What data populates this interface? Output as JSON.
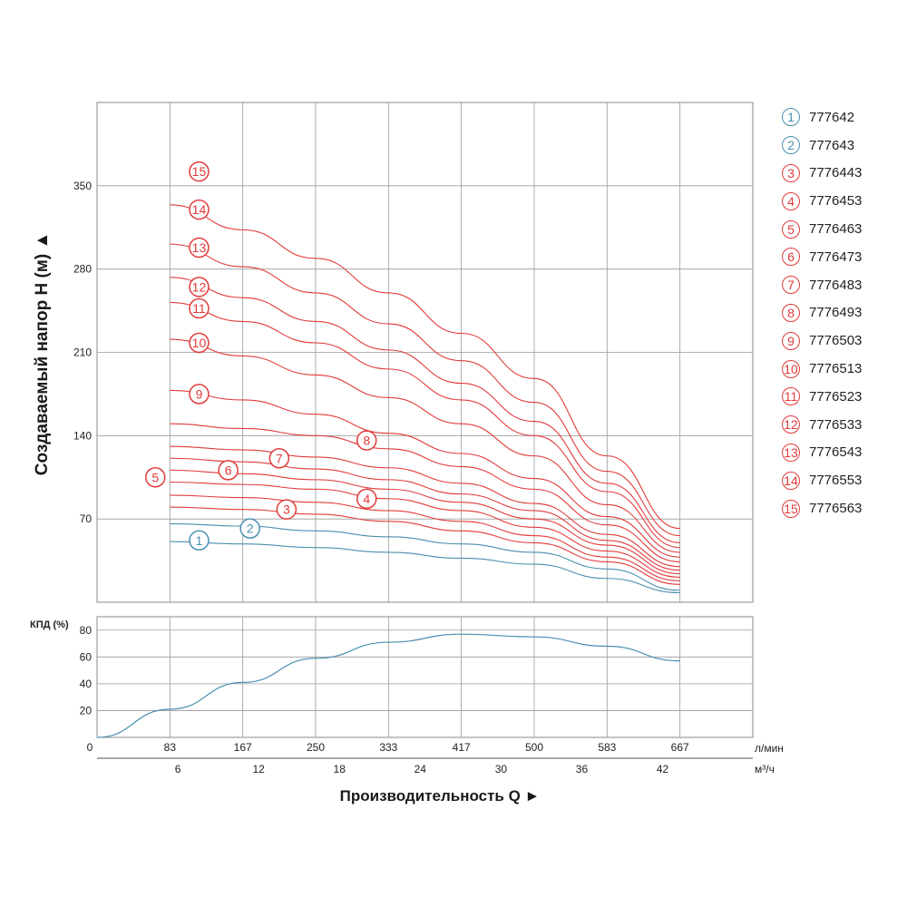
{
  "chart_data": [
    {
      "type": "line",
      "ylabel": "Создаваемый напор Н (м) ▲",
      "xlabel": "Производительность Q ►",
      "x_unit_top": "л/мин",
      "x_unit_bottom": "м³/ч",
      "xlim_m3h": [
        0,
        45
      ],
      "ylim": [
        0,
        420
      ],
      "y_ticks": [
        "70",
        "140",
        "210",
        "280",
        "350"
      ],
      "x_ticks_lmin": [
        "0",
        "83",
        "167",
        "250",
        "333",
        "417",
        "500",
        "583",
        "667"
      ],
      "x_ticks_m3h": [
        "6",
        "12",
        "18",
        "24",
        "30",
        "36",
        "42"
      ],
      "grid": true,
      "legend_position": "right",
      "colors": {
        "blue": "#4a8fb0",
        "red": "#e23a3a"
      },
      "x": [
        5,
        10,
        15,
        20,
        25,
        30,
        35,
        40
      ],
      "series": [
        {
          "label": "1",
          "name": "777642",
          "color": "blue",
          "values": [
            51,
            49,
            46,
            42,
            37,
            32,
            20,
            8
          ]
        },
        {
          "label": "2",
          "name": "777643",
          "color": "blue",
          "values": [
            66,
            64,
            60,
            55,
            49,
            42,
            28,
            10
          ]
        },
        {
          "label": "3",
          "name": "7776443",
          "color": "red",
          "values": [
            80,
            78,
            74,
            68,
            60,
            50,
            34,
            15
          ]
        },
        {
          "label": "4",
          "name": "7776453",
          "color": "red",
          "values": [
            90,
            88,
            84,
            77,
            68,
            56,
            38,
            18
          ]
        },
        {
          "label": "5",
          "name": "7776463",
          "color": "red",
          "values": [
            101,
            99,
            95,
            87,
            77,
            63,
            43,
            21
          ]
        },
        {
          "label": "6",
          "name": "7776473",
          "color": "red",
          "values": [
            111,
            108,
            103,
            95,
            84,
            70,
            48,
            24
          ]
        },
        {
          "label": "7",
          "name": "7776483",
          "color": "red",
          "values": [
            121,
            118,
            112,
            103,
            91,
            77,
            52,
            27
          ]
        },
        {
          "label": "8",
          "name": "7776493",
          "color": "red",
          "values": [
            131,
            128,
            122,
            113,
            100,
            83,
            57,
            30
          ]
        },
        {
          "label": "9",
          "name": "7776503",
          "color": "red",
          "values": [
            150,
            146,
            140,
            129,
            114,
            95,
            65,
            34
          ]
        },
        {
          "label": "10",
          "name": "7776513",
          "color": "red",
          "values": [
            178,
            170,
            158,
            142,
            125,
            104,
            72,
            38
          ]
        },
        {
          "label": "11",
          "name": "7776523",
          "color": "red",
          "values": [
            221,
            207,
            191,
            172,
            150,
            123,
            82,
            42
          ]
        },
        {
          "label": "12",
          "name": "7776533",
          "color": "red",
          "values": [
            252,
            236,
            218,
            196,
            170,
            140,
            93,
            46
          ]
        },
        {
          "label": "13",
          "name": "7776543",
          "color": "red",
          "values": [
            273,
            256,
            236,
            212,
            184,
            152,
            100,
            50
          ]
        },
        {
          "label": "14",
          "name": "7776553",
          "color": "red",
          "values": [
            301,
            282,
            260,
            234,
            203,
            168,
            110,
            56
          ]
        },
        {
          "label": "15",
          "name": "7776563",
          "color": "red",
          "values": [
            334,
            313,
            289,
            260,
            226,
            188,
            123,
            62
          ]
        }
      ],
      "series_extra_top": [
        {
          "label": "15",
          "values_shift": 29
        }
      ]
    },
    {
      "type": "line",
      "ylabel": "КПД (%)",
      "ylim": [
        0,
        90
      ],
      "y_ticks": [
        "20",
        "40",
        "60",
        "80"
      ],
      "grid": true,
      "x": [
        0,
        5,
        10,
        15,
        20,
        25,
        30,
        35,
        40
      ],
      "values": [
        0,
        21,
        41,
        59,
        71,
        77,
        75,
        68,
        57
      ],
      "color": "blue"
    }
  ]
}
